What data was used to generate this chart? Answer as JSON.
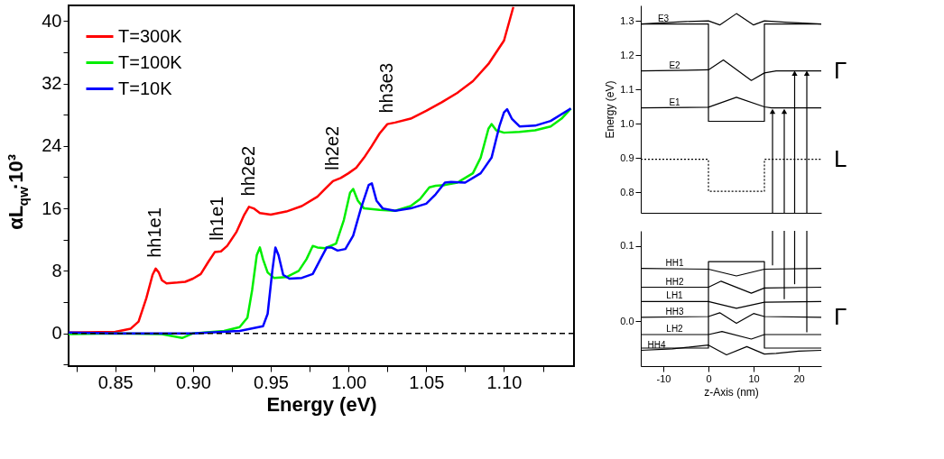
{
  "chart_data": [
    {
      "type": "line",
      "xlabel": "Energy (eV)",
      "ylabel": "αL$_{qw}$·10³",
      "xlim": [
        0.82,
        1.145
      ],
      "ylim": [
        -4.2,
        42
      ],
      "xticks": [
        {
          "value": 0.825,
          "label": null
        },
        {
          "value": 0.85,
          "label": "0.85"
        },
        {
          "value": 0.875,
          "label": null
        },
        {
          "value": 0.9,
          "label": "0.90"
        },
        {
          "value": 0.925,
          "label": null
        },
        {
          "value": 0.95,
          "label": "0.95"
        },
        {
          "value": 0.975,
          "label": null
        },
        {
          "value": 1.0,
          "label": "1.00"
        },
        {
          "value": 1.025,
          "label": null
        },
        {
          "value": 1.05,
          "label": "1.05"
        },
        {
          "value": 1.075,
          "label": null
        },
        {
          "value": 1.1,
          "label": "1.10"
        },
        {
          "value": 1.125,
          "label": null
        }
      ],
      "yticks": [
        {
          "value": -4,
          "label": null
        },
        0,
        {
          "value": 4,
          "label": null
        },
        8,
        {
          "value": 12,
          "label": null
        },
        16,
        {
          "value": 20,
          "label": null
        },
        24,
        {
          "value": 28,
          "label": null
        },
        32,
        {
          "value": 36,
          "label": null
        },
        40
      ],
      "grid": false,
      "legend": "top left",
      "ref_lines": [
        {
          "axis": "y",
          "value": 0,
          "line_style": "dashed",
          "color": "#000000"
        }
      ],
      "annotations": [
        {
          "text": "hh1e1",
          "x": 0.876,
          "y": 8.3
        },
        {
          "text": "lh1e1",
          "x": 0.916,
          "y": 10.5
        },
        {
          "text": "hh2e2",
          "x": 0.936,
          "y": 16.2
        },
        {
          "text": "lh2e2",
          "x": 0.99,
          "y": 19.5
        },
        {
          "text": "hh3e3",
          "x": 1.025,
          "y": 26.8
        }
      ],
      "series": [
        {
          "name": "T=300K",
          "color": "#ff0000",
          "x": [
            0.82,
            0.85,
            0.86,
            0.865,
            0.87,
            0.874,
            0.876,
            0.878,
            0.88,
            0.883,
            0.89,
            0.895,
            0.9,
            0.905,
            0.91,
            0.914,
            0.918,
            0.922,
            0.928,
            0.933,
            0.936,
            0.939,
            0.943,
            0.95,
            0.96,
            0.97,
            0.98,
            0.985,
            0.99,
            0.995,
            1.0,
            1.005,
            1.01,
            1.015,
            1.02,
            1.025,
            1.03,
            1.04,
            1.05,
            1.06,
            1.07,
            1.08,
            1.09,
            1.1,
            1.106
          ],
          "values": [
            0.1,
            0.2,
            0.6,
            1.5,
            4.5,
            7.5,
            8.3,
            7.8,
            6.8,
            6.4,
            6.5,
            6.6,
            7.0,
            7.6,
            9.2,
            10.4,
            10.5,
            11.2,
            13.0,
            15.2,
            16.2,
            16.0,
            15.4,
            15.2,
            15.6,
            16.3,
            17.5,
            18.5,
            19.5,
            19.9,
            20.5,
            21.2,
            22.5,
            24.0,
            25.6,
            26.8,
            27.0,
            27.5,
            28.5,
            29.6,
            30.8,
            32.3,
            34.5,
            37.5,
            41.8
          ]
        },
        {
          "name": "T=100K",
          "color": "#00ee00",
          "x": [
            0.82,
            0.85,
            0.88,
            0.893,
            0.9,
            0.92,
            0.93,
            0.935,
            0.938,
            0.941,
            0.943,
            0.945,
            0.948,
            0.952,
            0.96,
            0.968,
            0.973,
            0.977,
            0.98,
            0.985,
            0.992,
            0.997,
            1.001,
            1.003,
            1.006,
            1.01,
            1.02,
            1.03,
            1.04,
            1.046,
            1.052,
            1.056,
            1.062,
            1.07,
            1.08,
            1.085,
            1.09,
            1.092,
            1.095,
            1.1,
            1.11,
            1.12,
            1.13,
            1.137,
            1.143
          ],
          "values": [
            -0.1,
            0,
            -0.1,
            -0.6,
            0,
            0.3,
            0.8,
            2.0,
            5.5,
            10.0,
            11.0,
            9.5,
            7.8,
            7.1,
            7.2,
            8.0,
            9.5,
            11.2,
            11.0,
            10.9,
            11.5,
            14.5,
            18.0,
            18.5,
            17.0,
            16.0,
            15.8,
            15.7,
            16.3,
            17.2,
            18.7,
            18.9,
            19.0,
            19.3,
            20.5,
            22.5,
            26.2,
            26.8,
            26.0,
            25.7,
            25.8,
            26.0,
            26.5,
            27.5,
            28.8
          ]
        },
        {
          "name": "T=10K",
          "color": "#0000ff",
          "x": [
            0.82,
            0.85,
            0.9,
            0.93,
            0.945,
            0.948,
            0.951,
            0.953,
            0.955,
            0.958,
            0.962,
            0.97,
            0.977,
            0.982,
            0.986,
            0.989,
            0.993,
            0.998,
            1.003,
            1.008,
            1.013,
            1.015,
            1.018,
            1.022,
            1.03,
            1.04,
            1.05,
            1.056,
            1.062,
            1.066,
            1.075,
            1.085,
            1.092,
            1.097,
            1.1,
            1.102,
            1.105,
            1.11,
            1.12,
            1.13,
            1.143
          ],
          "values": [
            0.1,
            0,
            0,
            0.3,
            0.9,
            2.5,
            8.0,
            11.0,
            10.0,
            7.5,
            7.0,
            7.1,
            7.6,
            9.5,
            11.0,
            11.0,
            10.6,
            10.8,
            12.5,
            16.0,
            19.0,
            19.2,
            17.0,
            16.0,
            15.7,
            16.0,
            16.6,
            17.8,
            19.3,
            19.4,
            19.3,
            20.5,
            22.5,
            26.5,
            28.3,
            28.7,
            27.5,
            26.5,
            26.6,
            27.2,
            28.8
          ]
        }
      ]
    },
    {
      "type": "line",
      "ylabel": "Energy (eV)",
      "xlim": [
        -15,
        25
      ],
      "ylim": [
        0.74,
        1.345
      ],
      "tick_labels": "y",
      "yticks": [
        {
          "value": 0.8,
          "label": "0.8"
        },
        {
          "value": 0.9,
          "label": "0.9"
        },
        {
          "value": 1.0,
          "label": "1.0"
        },
        {
          "value": 1.1,
          "label": "1.1"
        },
        {
          "value": 1.2,
          "label": "1.2"
        },
        {
          "value": 1.3,
          "label": "1.3"
        }
      ],
      "grid": false,
      "legend": false,
      "annotations": [
        {
          "text": "Γ",
          "x": 25,
          "y": 1.154
        },
        {
          "text": "L",
          "x": 25,
          "y": 0.896
        }
      ],
      "series": [
        {
          "color": "#000000",
          "x": [
            -15,
            0,
            0,
            12.4,
            12.4,
            25
          ],
          "values": [
            1.291,
            1.291,
            1.007,
            1.007,
            1.291,
            1.291
          ]
        },
        {
          "color": "#000000",
          "line_style": "dotted",
          "x": [
            -15,
            0,
            0,
            12.4,
            12.4,
            25
          ],
          "values": [
            0.896,
            0.896,
            0.803,
            0.803,
            0.896,
            0.896
          ]
        },
        {
          "name": "E3",
          "color": "#000000",
          "x": [
            -15,
            -5,
            0,
            2.5,
            6.2,
            10,
            12.4,
            17,
            25
          ],
          "values": [
            1.291,
            1.298,
            1.3,
            1.288,
            1.321,
            1.288,
            1.3,
            1.296,
            1.291
          ]
        },
        {
          "name": "E2",
          "color": "#000000",
          "x": [
            -15,
            0,
            3.3,
            9.5,
            12.4,
            15,
            25
          ],
          "values": [
            1.154,
            1.157,
            1.186,
            1.126,
            1.148,
            1.154,
            1.154
          ]
        },
        {
          "name": "E1",
          "color": "#000000",
          "x": [
            -15,
            0,
            6.2,
            12.4,
            14,
            25
          ],
          "values": [
            1.046,
            1.048,
            1.077,
            1.049,
            1.046,
            1.046
          ]
        },
        {
          "color": "#000000",
          "marker": "triangle",
          "x": [
            14.2,
            14.2
          ],
          "values": [
            0.74,
            1.036
          ]
        },
        {
          "color": "#000000",
          "marker": "triangle",
          "x": [
            16.8,
            16.8
          ],
          "values": [
            0.74,
            1.036
          ]
        },
        {
          "color": "#000000",
          "marker": "triangle",
          "x": [
            19.1,
            19.1
          ],
          "values": [
            0.74,
            1.147
          ]
        },
        {
          "color": "#000000",
          "marker": "triangle",
          "x": [
            21.8,
            21.8
          ],
          "values": [
            0.74,
            1.147
          ]
        }
      ]
    },
    {
      "type": "line",
      "xlabel": "z-Axis (nm)",
      "xlim": [
        -15,
        25
      ],
      "ylim": [
        -0.06,
        0.12
      ],
      "xticks": [
        -10,
        0,
        10,
        20
      ],
      "yticks": [
        {
          "value": 0.0,
          "label": "0.0"
        },
        {
          "value": 0.1,
          "label": "0.1"
        }
      ],
      "grid": false,
      "legend": false,
      "annotations": [
        {
          "text": "Γ",
          "x": 25,
          "y": 0.005
        }
      ],
      "series": [
        {
          "color": "#000000",
          "x": [
            -15,
            0,
            0,
            12.4,
            12.4,
            25
          ],
          "values": [
            -0.036,
            -0.036,
            0.079,
            0.079,
            -0.036,
            -0.036
          ]
        },
        {
          "name": "HH1",
          "color": "#000000",
          "x": [
            -15,
            0,
            6.2,
            12.4,
            25
          ],
          "values": [
            0.07,
            0.069,
            0.06,
            0.069,
            0.07
          ]
        },
        {
          "name": "HH2",
          "color": "#000000",
          "x": [
            -15,
            0,
            2.8,
            9.5,
            12.4,
            25
          ],
          "values": [
            0.045,
            0.045,
            0.053,
            0.037,
            0.044,
            0.045
          ]
        },
        {
          "name": "LH1",
          "color": "#000000",
          "x": [
            -15,
            0,
            6.2,
            12.4,
            25
          ],
          "values": [
            0.026,
            0.026,
            0.017,
            0.025,
            0.026
          ]
        },
        {
          "name": "HH3",
          "color": "#000000",
          "x": [
            -15,
            0,
            2.5,
            6.2,
            10,
            12.4,
            25
          ],
          "values": [
            0.005,
            0.006,
            0.011,
            -0.003,
            0.01,
            0.006,
            0.005
          ]
        },
        {
          "name": "LH2",
          "color": "#000000",
          "x": [
            -15,
            0,
            3,
            9.5,
            12.4,
            25
          ],
          "values": [
            -0.018,
            -0.018,
            -0.014,
            -0.024,
            -0.018,
            -0.018
          ]
        },
        {
          "name": "HH4",
          "color": "#000000",
          "x": [
            -15,
            -8,
            0,
            4,
            8.5,
            12.4,
            15,
            20,
            25
          ],
          "values": [
            -0.039,
            -0.037,
            -0.032,
            -0.045,
            -0.034,
            -0.044,
            -0.043,
            -0.04,
            -0.039
          ]
        },
        {
          "color": "#000000",
          "x": [
            14.2,
            14.2
          ],
          "values": [
            0.074,
            0.12
          ]
        },
        {
          "color": "#000000",
          "x": [
            16.8,
            16.8
          ],
          "values": [
            0.029,
            0.12
          ]
        },
        {
          "color": "#000000",
          "x": [
            19.1,
            19.1
          ],
          "values": [
            0.049,
            0.12
          ]
        },
        {
          "color": "#000000",
          "x": [
            21.8,
            21.8
          ],
          "values": [
            -0.015,
            0.12
          ]
        }
      ]
    }
  ]
}
